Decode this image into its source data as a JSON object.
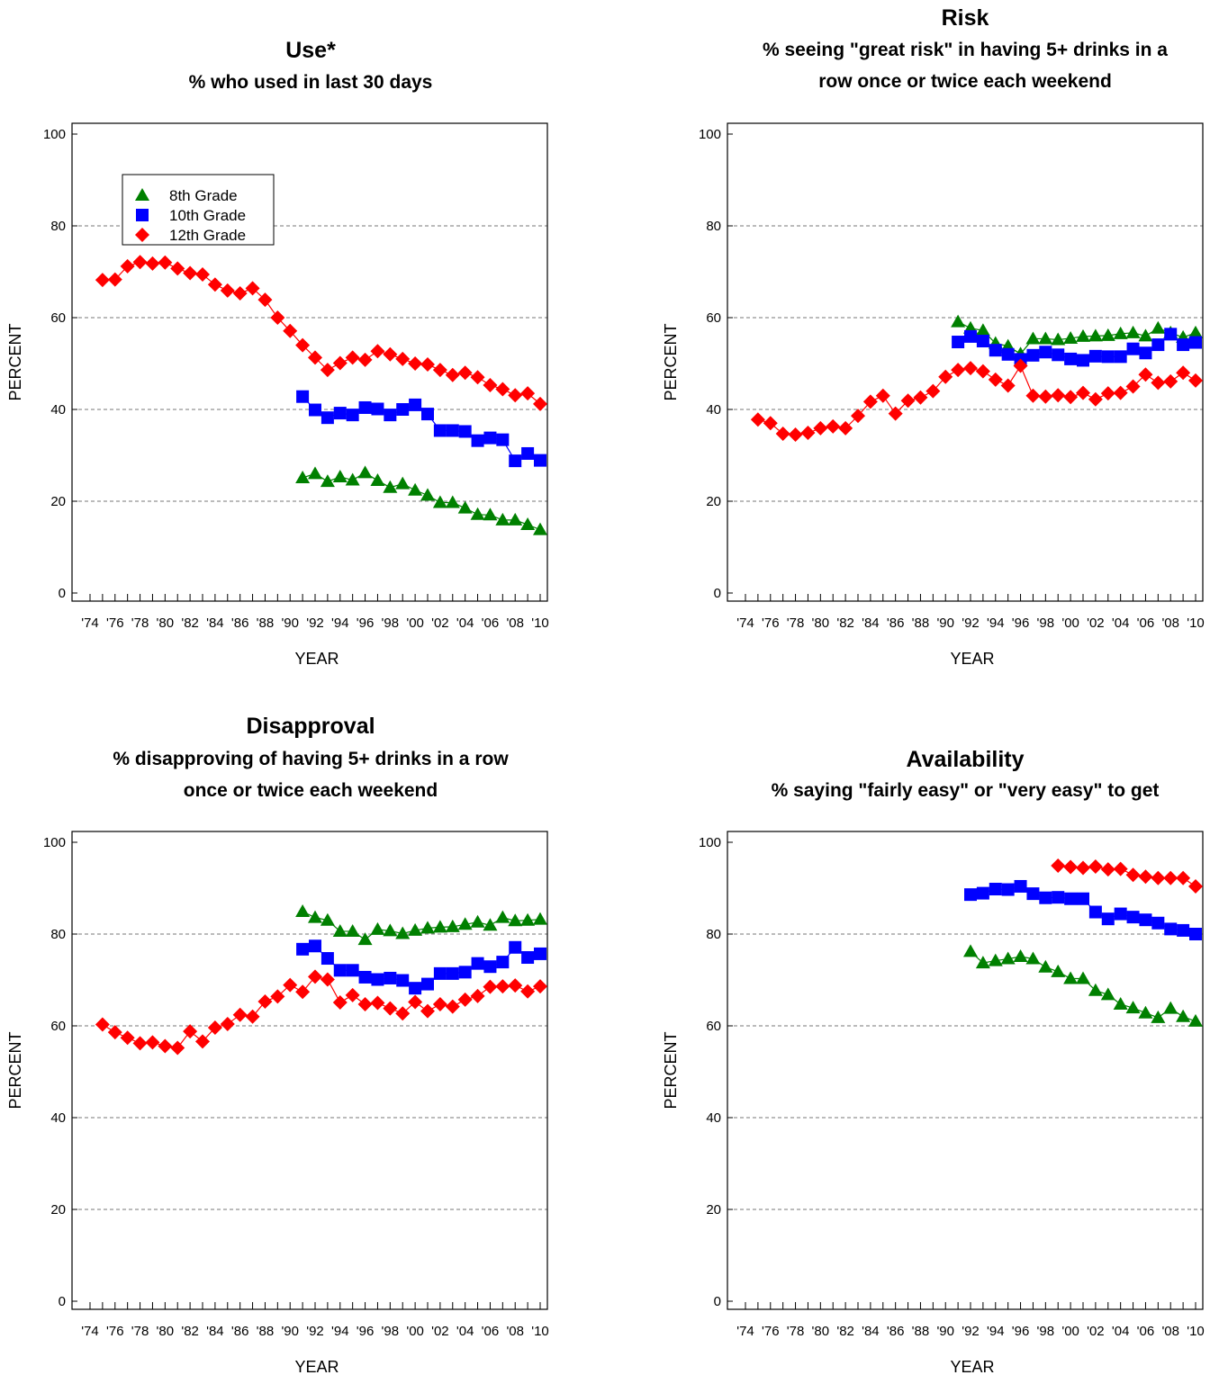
{
  "legend": [
    "8th Grade",
    "10th Grade",
    "12th Grade"
  ],
  "colors": {
    "g8": "#008000",
    "g10": "#0000ff",
    "g12": "#ff0000"
  },
  "chart_data": [
    {
      "type": "line",
      "title": "Use*",
      "subtitle": [
        "% who used in last 30 days"
      ],
      "xlabel": "YEAR",
      "ylabel": "PERCENT",
      "ylim": [
        0,
        100
      ],
      "xlim": [
        1974,
        2010
      ],
      "yticks": [
        "0",
        "20",
        "40",
        "60",
        "80",
        "100"
      ],
      "xticks": [
        "'74",
        "'76",
        "'78",
        "'80",
        "'82",
        "'84",
        "'86",
        "'88",
        "'90",
        "'92",
        "'94",
        "'96",
        "'98",
        "'00",
        "'02",
        "'04",
        "'06",
        "'08",
        "'10"
      ],
      "legend": true,
      "legend_position": "top-left",
      "series": [
        {
          "name": "8th Grade",
          "marker": "triangle",
          "start": 1991,
          "values": [
            25.1,
            26.0,
            24.3,
            25.3,
            24.6,
            26.2,
            24.5,
            23.0,
            23.8,
            22.4,
            21.3,
            19.7,
            19.7,
            18.5,
            17.1,
            17.0,
            15.9,
            15.9,
            14.9,
            13.8
          ]
        },
        {
          "name": "10th Grade",
          "marker": "square",
          "start": 1991,
          "values": [
            42.8,
            39.9,
            38.2,
            39.2,
            38.8,
            40.4,
            40.1,
            38.8,
            40.0,
            41.0,
            39.0,
            35.4,
            35.4,
            35.2,
            33.2,
            33.8,
            33.4,
            28.8,
            30.4,
            28.9
          ]
        },
        {
          "name": "12th Grade",
          "marker": "diamond",
          "start": 1975,
          "values": [
            68.2,
            68.3,
            71.2,
            72.1,
            71.8,
            72.0,
            70.7,
            69.7,
            69.4,
            67.2,
            65.9,
            65.3,
            66.4,
            63.9,
            60.0,
            57.1,
            54.0,
            51.3,
            48.6,
            50.1,
            51.3,
            50.8,
            52.7,
            52.0,
            51.0,
            50.0,
            49.8,
            48.6,
            47.5,
            48.0,
            47.0,
            45.3,
            44.4,
            43.1,
            43.5,
            41.2
          ]
        }
      ]
    },
    {
      "type": "line",
      "title": "Risk",
      "subtitle": [
        "% seeing \"great risk\" in having 5+ drinks in a",
        "row once or twice each weekend"
      ],
      "xlabel": "YEAR",
      "ylabel": "PERCENT",
      "ylim": [
        0,
        100
      ],
      "xlim": [
        1974,
        2010
      ],
      "yticks": [
        "0",
        "20",
        "40",
        "60",
        "80",
        "100"
      ],
      "xticks": [
        "'74",
        "'76",
        "'78",
        "'80",
        "'82",
        "'84",
        "'86",
        "'88",
        "'90",
        "'92",
        "'94",
        "'96",
        "'98",
        "'00",
        "'02",
        "'04",
        "'06",
        "'08",
        "'10"
      ],
      "legend": false,
      "series": [
        {
          "name": "8th Grade",
          "marker": "triangle",
          "start": 1991,
          "values": [
            59.1,
            57.7,
            57.2,
            54.4,
            53.8,
            52.1,
            55.4,
            55.4,
            55.2,
            55.5,
            55.9,
            56.0,
            56.1,
            56.5,
            56.7,
            56.0,
            57.7,
            56.7,
            55.7,
            56.7
          ]
        },
        {
          "name": "10th Grade",
          "marker": "square",
          "start": 1991,
          "values": [
            54.7,
            55.9,
            54.9,
            52.9,
            52.0,
            50.9,
            51.8,
            52.5,
            51.9,
            51.0,
            50.7,
            51.6,
            51.5,
            51.5,
            53.2,
            52.3,
            54.1,
            56.4,
            54.1,
            54.6
          ]
        },
        {
          "name": "12th Grade",
          "marker": "diamond",
          "start": 1975,
          "values": [
            37.8,
            37.0,
            34.7,
            34.5,
            34.9,
            35.9,
            36.3,
            35.9,
            38.6,
            41.7,
            43.0,
            39.1,
            41.9,
            42.6,
            44.0,
            47.1,
            48.6,
            49.0,
            48.3,
            46.5,
            45.2,
            49.5,
            43.0,
            42.8,
            43.1,
            42.7,
            43.6,
            42.2,
            43.5,
            43.6,
            45.0,
            47.6,
            45.8,
            46.1,
            48.0,
            46.3
          ]
        }
      ]
    },
    {
      "type": "line",
      "title": "Disapproval",
      "subtitle": [
        "% disapproving of having 5+ drinks in a row",
        "once or twice each weekend"
      ],
      "xlabel": "YEAR",
      "ylabel": "PERCENT",
      "ylim": [
        0,
        100
      ],
      "xlim": [
        1974,
        2010
      ],
      "yticks": [
        "0",
        "20",
        "40",
        "60",
        "80",
        "100"
      ],
      "xticks": [
        "'74",
        "'76",
        "'78",
        "'80",
        "'82",
        "'84",
        "'86",
        "'88",
        "'90",
        "'92",
        "'94",
        "'96",
        "'98",
        "'00",
        "'02",
        "'04",
        "'06",
        "'08",
        "'10"
      ],
      "legend": false,
      "series": [
        {
          "name": "8th Grade",
          "marker": "triangle",
          "start": 1991,
          "values": [
            84.9,
            83.6,
            83.0,
            80.6,
            80.6,
            78.8,
            81.0,
            80.7,
            80.1,
            80.8,
            81.3,
            81.5,
            81.6,
            82.1,
            82.6,
            81.9,
            83.6,
            82.9,
            83.0,
            83.2
          ]
        },
        {
          "name": "10th Grade",
          "marker": "square",
          "start": 1991,
          "values": [
            76.7,
            77.4,
            74.7,
            72.1,
            72.1,
            70.6,
            70.1,
            70.4,
            69.9,
            68.2,
            69.1,
            71.4,
            71.4,
            71.7,
            73.6,
            72.9,
            73.9,
            77.1,
            74.9,
            75.7
          ]
        },
        {
          "name": "12th Grade",
          "marker": "diamond",
          "start": 1975,
          "values": [
            60.3,
            58.6,
            57.4,
            56.2,
            56.4,
            55.6,
            55.2,
            58.8,
            56.6,
            59.6,
            60.4,
            62.4,
            62.0,
            65.3,
            66.4,
            68.9,
            67.4,
            70.7,
            70.1,
            65.1,
            66.7,
            64.7,
            65.0,
            63.8,
            62.7,
            65.2,
            63.2,
            64.7,
            64.2,
            65.7,
            66.5,
            68.5,
            68.6,
            68.8,
            67.5,
            68.6
          ]
        }
      ]
    },
    {
      "type": "line",
      "title": "Availability",
      "subtitle": [
        "% saying \"fairly easy\" or \"very easy\" to get"
      ],
      "xlabel": "YEAR",
      "ylabel": "PERCENT",
      "ylim": [
        0,
        100
      ],
      "xlim": [
        1974,
        2010
      ],
      "yticks": [
        "0",
        "20",
        "40",
        "60",
        "80",
        "100"
      ],
      "xticks": [
        "'74",
        "'76",
        "'78",
        "'80",
        "'82",
        "'84",
        "'86",
        "'88",
        "'90",
        "'92",
        "'94",
        "'96",
        "'98",
        "'00",
        "'02",
        "'04",
        "'06",
        "'08",
        "'10"
      ],
      "legend": false,
      "series": [
        {
          "name": "8th Grade",
          "marker": "triangle",
          "start": 1992,
          "values": [
            76.2,
            73.7,
            74.2,
            74.6,
            75.1,
            74.6,
            72.8,
            71.8,
            70.3,
            70.3,
            67.7,
            66.8,
            64.7,
            63.9,
            62.8,
            61.8,
            63.8,
            62.0,
            61.0
          ]
        },
        {
          "name": "10th Grade",
          "marker": "square",
          "start": 1992,
          "values": [
            88.6,
            88.9,
            89.8,
            89.7,
            90.4,
            88.8,
            87.9,
            88.0,
            87.7,
            87.7,
            84.8,
            83.3,
            84.4,
            83.7,
            83.1,
            82.4,
            81.1,
            80.8,
            80.0
          ]
        },
        {
          "name": "12th Grade",
          "marker": "diamond",
          "start": 1999,
          "values": [
            94.9,
            94.6,
            94.4,
            94.7,
            94.1,
            94.2,
            92.9,
            92.5,
            92.2,
            92.2,
            92.2,
            90.4
          ]
        }
      ]
    }
  ]
}
